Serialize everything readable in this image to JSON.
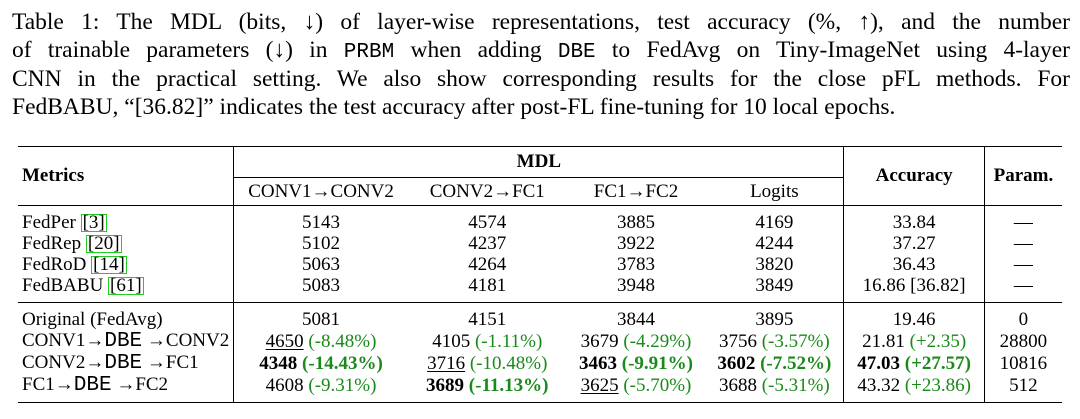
{
  "caption": {
    "lines": [
      [
        "Table 1: The MDL (bits, ↓) of layer-wise representations, test accuracy (%, ↑), and the number"
      ],
      [
        "of trainable parameters (↓) in ",
        "PRBM",
        " when adding ",
        "DBE",
        " to FedAvg on Tiny-ImageNet using 4-layer"
      ],
      [
        "CNN in the practical setting. We also show corresponding results for the close pFL methods. For"
      ],
      [
        "FedBABU, “[36.82]” indicates the test accuracy after post-FL fine-tuning for 10 local epochs."
      ]
    ]
  },
  "table": {
    "headers": {
      "metrics": "Metrics",
      "mdl": "MDL",
      "accuracy": "Accuracy",
      "param": "Param.",
      "mdl_sub": [
        "CONV1→CONV2",
        "CONV2→FC1",
        "FC1→FC2",
        "Logits"
      ]
    },
    "group1": [
      {
        "name": "FedPer ",
        "cite": "3",
        "vals": [
          "5143",
          "4574",
          "3885",
          "4169"
        ],
        "acc": "33.84",
        "param": "—"
      },
      {
        "name": "FedRep ",
        "cite": "20",
        "vals": [
          "5102",
          "4237",
          "3922",
          "4244"
        ],
        "acc": "37.27",
        "param": "—"
      },
      {
        "name": "FedRoD ",
        "cite": "14",
        "vals": [
          "5063",
          "4264",
          "3783",
          "3820"
        ],
        "acc": "36.43",
        "param": "—"
      },
      {
        "name": "FedBABU ",
        "cite": "61",
        "vals": [
          "5083",
          "4181",
          "3948",
          "3849"
        ],
        "acc": "16.86 [36.82]",
        "param": "—"
      }
    ],
    "group2": {
      "original": {
        "name": "Original (FedAvg)",
        "vals": [
          "5081",
          "4151",
          "3844",
          "3895"
        ],
        "acc": "19.46",
        "param": "0"
      },
      "rows": [
        {
          "name_a": "CONV1→",
          "name_mono": "DBE",
          "name_b": " →CONV2",
          "cells": [
            {
              "v": "4650",
              "d": " (-8.48%)"
            },
            {
              "v": "4105",
              "d": " (-1.11%)"
            },
            {
              "v": "3679",
              "d": " (-4.29%)"
            },
            {
              "v": "3756",
              "d": " (-3.57%)"
            }
          ],
          "acc": {
            "v": "21.81",
            "d": " (+2.35)"
          },
          "param": "28800"
        },
        {
          "name_a": "CONV2→",
          "name_mono": "DBE",
          "name_b": " →FC1",
          "cells": [
            {
              "v": "4348",
              "d": " (-14.43%)"
            },
            {
              "v": "3716",
              "d": " (-10.48%)"
            },
            {
              "v": "3463",
              "d": " (-9.91%)"
            },
            {
              "v": "3602",
              "d": " (-7.52%)"
            }
          ],
          "acc": {
            "v": "47.03",
            "d": " (+27.57)"
          },
          "param": "10816"
        },
        {
          "name_a": "FC1→",
          "name_mono": "DBE",
          "name_b": " →FC2",
          "cells": [
            {
              "v": "4608",
              "d": " (-9.31%)"
            },
            {
              "v": "3689",
              "d": " (-11.13%)"
            },
            {
              "v": "3625",
              "d": " (-5.70%)"
            },
            {
              "v": "3688",
              "d": " (-5.31%)"
            }
          ],
          "acc": {
            "v": "43.32",
            "d": " (+23.86)"
          },
          "param": "512"
        }
      ]
    },
    "colors": {
      "positive_change": "#1a8a1a",
      "citation_box": "#22cc22"
    }
  }
}
